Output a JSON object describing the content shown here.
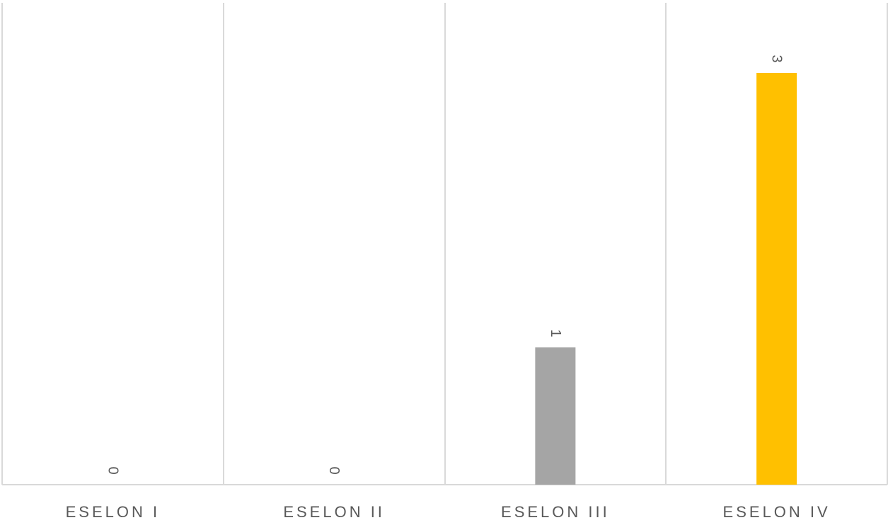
{
  "chart_data": {
    "type": "bar",
    "categories": [
      "ESELON I",
      "ESELON II",
      "ESELON III",
      "ESELON IV"
    ],
    "values": [
      0,
      0,
      1,
      3
    ],
    "bar_colors": [
      "#5b9bd5",
      "#ed7d31",
      "#a5a5a5",
      "#ffc000"
    ],
    "data_labels": [
      "0",
      "0",
      "1",
      "3"
    ],
    "ylim": [
      0,
      3.5
    ],
    "grid": "vertical-separators",
    "legend": "none",
    "gridline_color": "#d9d9d9",
    "label_color": "#595959"
  }
}
